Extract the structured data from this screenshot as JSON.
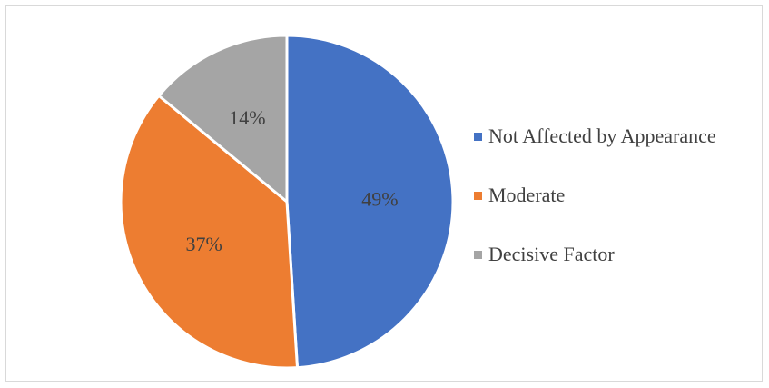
{
  "chart_data": {
    "type": "pie",
    "title": "",
    "categories": [
      "Not Affected by Appearance",
      "Moderate",
      "Decisive Factor"
    ],
    "values": [
      49,
      37,
      14
    ],
    "data_labels": [
      "49%",
      "37%",
      "14%"
    ],
    "colors": [
      "#4472c4",
      "#ed7d31",
      "#a5a5a5"
    ],
    "legend_position": "right"
  }
}
